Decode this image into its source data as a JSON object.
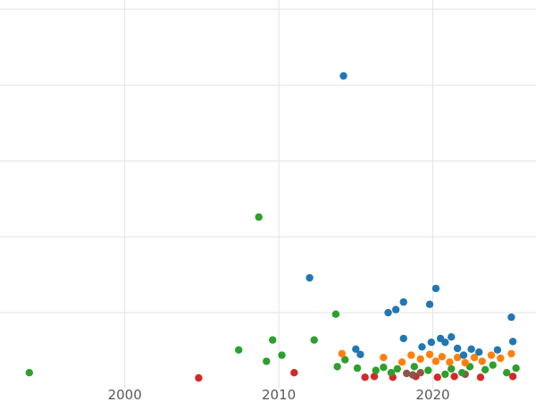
{
  "chart_data": {
    "type": "scatter",
    "title": "",
    "xlabel": "",
    "ylabel": "",
    "xlim": [
      1991.9,
      2026.7
    ],
    "ylim": [
      0,
      5.12
    ],
    "grid": true,
    "legend": "none",
    "background_color": "#ffffff",
    "gridline_color": "#e3e3e3",
    "tick_label_color": "#595959",
    "x_ticks": [
      {
        "value": 2000,
        "label": "2000"
      },
      {
        "value": 2010,
        "label": "2010"
      },
      {
        "value": 2020,
        "label": "2020"
      }
    ],
    "y_gridline_values": [
      1,
      2,
      3,
      4,
      5
    ],
    "series": [
      {
        "name": "red",
        "color": "#d62728",
        "points": [
          [
            2004.8,
            0.14
          ],
          [
            2011.0,
            0.21
          ],
          [
            2015.6,
            0.15
          ],
          [
            2016.2,
            0.16
          ],
          [
            2017.4,
            0.15
          ],
          [
            2018.9,
            0.16
          ],
          [
            2020.3,
            0.15
          ],
          [
            2021.4,
            0.16
          ],
          [
            2023.1,
            0.15
          ],
          [
            2025.2,
            0.16
          ]
        ]
      },
      {
        "name": "brown",
        "color": "#8c564b",
        "points": [
          [
            2018.3,
            0.2
          ],
          [
            2018.7,
            0.18
          ],
          [
            2019.2,
            0.21
          ],
          [
            2022.1,
            0.19
          ]
        ]
      },
      {
        "name": "green",
        "color": "#2ca02c",
        "points": [
          [
            1993.8,
            0.21
          ],
          [
            2007.4,
            0.51
          ],
          [
            2008.7,
            2.26
          ],
          [
            2009.2,
            0.36
          ],
          [
            2009.6,
            0.64
          ],
          [
            2010.2,
            0.44
          ],
          [
            2012.3,
            0.64
          ],
          [
            2013.7,
            0.98
          ],
          [
            2013.8,
            0.29
          ],
          [
            2014.3,
            0.38
          ],
          [
            2015.1,
            0.27
          ],
          [
            2016.3,
            0.24
          ],
          [
            2016.8,
            0.28
          ],
          [
            2017.3,
            0.21
          ],
          [
            2017.7,
            0.26
          ],
          [
            2018.8,
            0.29
          ],
          [
            2019.7,
            0.24
          ],
          [
            2020.8,
            0.19
          ],
          [
            2021.2,
            0.26
          ],
          [
            2021.9,
            0.21
          ],
          [
            2022.4,
            0.29
          ],
          [
            2023.4,
            0.25
          ],
          [
            2023.9,
            0.31
          ],
          [
            2024.8,
            0.21
          ],
          [
            2025.4,
            0.27
          ]
        ]
      },
      {
        "name": "orange",
        "color": "#ff7f0e",
        "points": [
          [
            2014.1,
            0.46
          ],
          [
            2016.8,
            0.41
          ],
          [
            2018.0,
            0.35
          ],
          [
            2018.6,
            0.44
          ],
          [
            2019.2,
            0.39
          ],
          [
            2019.8,
            0.45
          ],
          [
            2020.2,
            0.36
          ],
          [
            2020.6,
            0.42
          ],
          [
            2021.1,
            0.35
          ],
          [
            2021.6,
            0.41
          ],
          [
            2022.1,
            0.34
          ],
          [
            2022.7,
            0.41
          ],
          [
            2023.2,
            0.36
          ],
          [
            2023.8,
            0.44
          ],
          [
            2024.4,
            0.4
          ],
          [
            2025.1,
            0.46
          ]
        ]
      },
      {
        "name": "blue",
        "color": "#1f77b4",
        "points": [
          [
            2014.2,
            4.12
          ],
          [
            2012.0,
            1.46
          ],
          [
            2015.0,
            0.52
          ],
          [
            2015.3,
            0.45
          ],
          [
            2017.1,
            1.0
          ],
          [
            2017.6,
            1.04
          ],
          [
            2018.1,
            1.14
          ],
          [
            2018.1,
            0.66
          ],
          [
            2019.3,
            0.55
          ],
          [
            2019.8,
            1.11
          ],
          [
            2019.9,
            0.61
          ],
          [
            2020.2,
            1.32
          ],
          [
            2020.5,
            0.66
          ],
          [
            2020.8,
            0.61
          ],
          [
            2021.2,
            0.68
          ],
          [
            2021.6,
            0.53
          ],
          [
            2022.0,
            0.44
          ],
          [
            2022.5,
            0.52
          ],
          [
            2023.0,
            0.48
          ],
          [
            2024.2,
            0.51
          ],
          [
            2025.1,
            0.94
          ],
          [
            2025.2,
            0.62
          ]
        ]
      }
    ]
  }
}
